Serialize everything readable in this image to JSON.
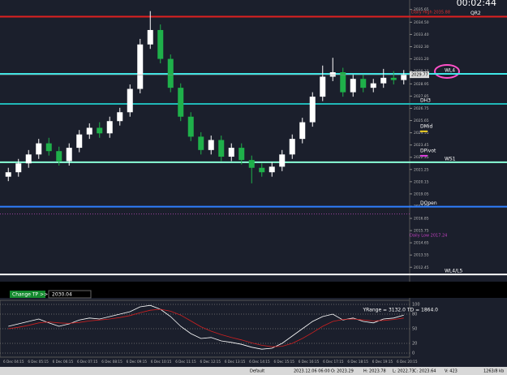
{
  "chart_data": {
    "type": "candlestick",
    "clock": "00:02:44",
    "open": [
      2020.6,
      2021.0,
      2021.8,
      2022.6,
      2023.6,
      2022.9,
      2022.0,
      2023.2,
      2024.4,
      2025.0,
      2024.5,
      2025.6,
      2026.4,
      2028.5,
      2032.5,
      2033.8,
      2031.2,
      2028.6,
      2026.0,
      2024.2,
      2023.0,
      2023.9,
      2022.4,
      2023.2,
      2022.1,
      2021.4,
      2021.0,
      2021.5,
      2022.6,
      2024.0,
      2025.5,
      2027.8,
      2029.6,
      2030.0,
      2028.2,
      2029.4,
      2028.6,
      2029.0,
      2029.5,
      2029.3
    ],
    "high": [
      2021.4,
      2022.2,
      2023.0,
      2024.0,
      2024.1,
      2023.3,
      2023.6,
      2024.8,
      2025.4,
      2025.5,
      2026.0,
      2026.8,
      2028.9,
      2033.0,
      2035.5,
      2034.3,
      2031.6,
      2029.0,
      2026.4,
      2024.6,
      2024.3,
      2024.3,
      2023.6,
      2023.6,
      2022.5,
      2021.8,
      2021.9,
      2023.0,
      2024.4,
      2025.9,
      2028.2,
      2030.6,
      2031.3,
      2030.4,
      2029.8,
      2029.8,
      2029.4,
      2030.3,
      2030.1,
      2030.2
    ],
    "low": [
      2020.2,
      2020.6,
      2021.4,
      2022.2,
      2022.5,
      2021.6,
      2021.6,
      2022.8,
      2024.0,
      2024.1,
      2024.1,
      2025.2,
      2026.0,
      2028.1,
      2032.1,
      2030.8,
      2028.2,
      2025.6,
      2023.8,
      2022.6,
      2022.6,
      2022.0,
      2022.0,
      2021.7,
      2020.0,
      2020.6,
      2020.6,
      2021.1,
      2022.2,
      2023.6,
      2025.1,
      2027.4,
      2029.2,
      2027.8,
      2027.8,
      2028.2,
      2028.2,
      2028.6,
      2028.9,
      2028.9
    ],
    "close": [
      2021.0,
      2021.8,
      2022.6,
      2023.6,
      2022.9,
      2022.0,
      2023.2,
      2024.4,
      2025.0,
      2024.5,
      2025.6,
      2026.4,
      2028.5,
      2032.5,
      2033.8,
      2031.2,
      2028.6,
      2026.0,
      2024.2,
      2023.0,
      2023.9,
      2022.4,
      2023.2,
      2022.1,
      2021.4,
      2021.0,
      2021.5,
      2022.6,
      2024.0,
      2025.5,
      2027.8,
      2029.6,
      2030.0,
      2028.2,
      2029.4,
      2028.6,
      2029.0,
      2029.5,
      2029.3,
      2029.8
    ],
    "ylim": [
      2011.3,
      2036.5
    ],
    "yticks": [
      {
        "value": 2035.65,
        "label": "2035.65"
      },
      {
        "value": 2034.5,
        "label": "2034.50"
      },
      {
        "value": 2033.4,
        "label": "2033.40"
      },
      {
        "value": 2032.3,
        "label": "2032.30"
      },
      {
        "value": 2031.2,
        "label": "2031.20"
      },
      {
        "value": 2030.1,
        "label": "2030.10"
      },
      {
        "value": 2028.95,
        "label": "2028.95"
      },
      {
        "value": 2027.85,
        "label": "2027.85"
      },
      {
        "value": 2026.75,
        "label": "2026.75"
      },
      {
        "value": 2025.65,
        "label": "2025.65"
      },
      {
        "value": 2024.55,
        "label": "2024.55"
      },
      {
        "value": 2023.45,
        "label": "2023.45"
      },
      {
        "value": 2022.35,
        "label": "2022.35"
      },
      {
        "value": 2021.25,
        "label": "2021.25"
      },
      {
        "value": 2020.15,
        "label": "2020.15"
      },
      {
        "value": 2019.05,
        "label": "2019.05"
      },
      {
        "value": 2017.95,
        "label": "2017.95"
      },
      {
        "value": 2016.85,
        "label": "2016.85"
      },
      {
        "value": 2015.75,
        "label": "2015.75"
      },
      {
        "value": 2014.65,
        "label": "2014.65"
      },
      {
        "value": 2013.55,
        "label": "2013.55"
      },
      {
        "value": 2012.45,
        "label": "2012.45"
      }
    ],
    "current_price": {
      "value": 2029.77,
      "label": "2029.77"
    },
    "levels": [
      {
        "label": "QR2",
        "price": 2035.0,
        "color": "#e02020"
      },
      {
        "label": "WL4",
        "price": 2029.85,
        "color": "#40e8e8"
      },
      {
        "label": "DH3",
        "price": 2027.15,
        "color": "#20b8b8"
      },
      {
        "label": "WS1",
        "price": 2021.9,
        "color": "#8affd8"
      },
      {
        "label": "DOpen",
        "price": 2017.9,
        "color": "#2f7fff"
      },
      {
        "label": "WL4/L5",
        "price": 2011.8,
        "color": "#ffffff"
      }
    ],
    "markers": [
      {
        "label": "DMid",
        "price": 2024.9,
        "color": "#f0d020"
      },
      {
        "label": "DPivot",
        "price": 2022.7,
        "color": "#e040e0"
      }
    ],
    "daily_high": "Daily High 2035.88",
    "daily_low": "Daily Low 2017.24",
    "daily_low_price": 2017.24,
    "x_labels": [
      "6 Dec 04:15",
      "6 Dec 05:15",
      "6 Dec 06:15",
      "6 Dec 07:15",
      "6 Dec 08:15",
      "6 Dec 09:15",
      "6 Dec 10:15",
      "6 Dec 11:15",
      "6 Dec 12:15",
      "6 Dec 13:15",
      "6 Dec 14:15",
      "6 Dec 15:15",
      "6 Dec 16:15",
      "6 Dec 17:15",
      "6 Dec 18:15",
      "6 Dec 19:15",
      "6 Dec 20:15"
    ],
    "oscillator": {
      "title": "YRange = 3132.0   TD = 1864.0",
      "ylim": [
        -5,
        105
      ],
      "yticks": [
        0,
        20,
        50,
        80,
        100
      ],
      "series": [
        {
          "color": "#ffffff",
          "values": [
            55,
            60,
            65,
            70,
            62,
            55,
            60,
            68,
            72,
            70,
            75,
            80,
            85,
            95,
            98,
            90,
            75,
            55,
            40,
            30,
            32,
            25,
            22,
            18,
            12,
            8,
            10,
            20,
            35,
            50,
            65,
            75,
            80,
            68,
            72,
            65,
            62,
            70,
            72,
            78
          ]
        },
        {
          "color": "#d02020",
          "values": [
            50,
            53,
            57,
            62,
            64,
            62,
            61,
            63,
            66,
            68,
            70,
            73,
            77,
            83,
            88,
            90,
            86,
            78,
            66,
            54,
            45,
            38,
            32,
            27,
            21,
            16,
            13,
            14,
            20,
            30,
            42,
            55,
            65,
            69,
            70,
            68,
            66,
            67,
            69,
            72
          ]
        }
      ]
    }
  },
  "panel": {
    "button": "Change TP >>",
    "tp_value": "2030.04"
  },
  "status_bar": [
    "Default",
    "2023.12.06 06:00",
    "O: 2023.29",
    "H: 2023.78",
    "L: 2022.73",
    "C: 2023.64",
    "V: 423",
    "1263/8 kb"
  ]
}
